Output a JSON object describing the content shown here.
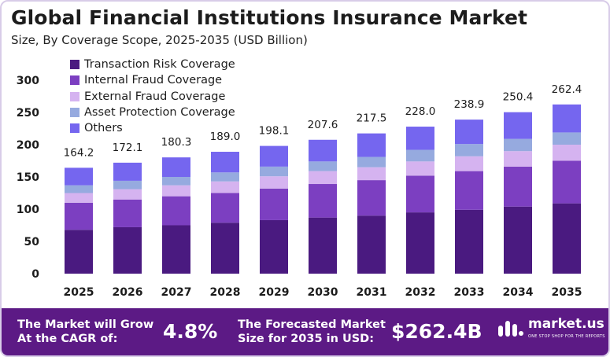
{
  "title": "Global Financial Institutions Insurance Market",
  "subtitle": "Size, By Coverage Scope, 2025-2035 (USD Billion)",
  "colors": {
    "transaction": "#4a1a80",
    "internal": "#7c3fc1",
    "external": "#d5b3f0",
    "asset": "#96aadf",
    "others": "#7566ef",
    "footer": "#5c1a85",
    "text": "#1c1c1c"
  },
  "chart_data": {
    "type": "bar",
    "stacked": true,
    "categories": [
      "2025",
      "2026",
      "2027",
      "2028",
      "2029",
      "2030",
      "2031",
      "2032",
      "2033",
      "2034",
      "2035"
    ],
    "series": [
      {
        "name": "Transaction Risk Coverage",
        "color": "#4a1a80",
        "values": [
          68,
          72,
          75,
          79,
          83,
          87,
          90,
          95,
          99,
          104,
          109
        ]
      },
      {
        "name": "Internal Fraud Coverage",
        "color": "#7c3fc1",
        "values": [
          42,
          43,
          45,
          46,
          49,
          52,
          55,
          57,
          60,
          62,
          66
        ]
      },
      {
        "name": "External Fraud Coverage",
        "color": "#d5b3f0",
        "values": [
          15,
          16,
          17,
          18,
          19,
          20,
          20,
          22,
          23,
          24,
          25
        ]
      },
      {
        "name": "Asset Protection Coverage",
        "color": "#96aadf",
        "values": [
          12,
          13,
          13,
          14,
          15,
          15,
          16,
          18,
          19,
          19,
          19
        ]
      },
      {
        "name": "Others",
        "color": "#7566ef",
        "values": [
          27.2,
          28.1,
          30.3,
          32,
          32.1,
          33.6,
          36.5,
          36,
          37.9,
          41.4,
          43.4
        ]
      }
    ],
    "totals": [
      "164.2",
      "172.1",
      "180.3",
      "189.0",
      "198.1",
      "207.6",
      "217.5",
      "228.0",
      "238.9",
      "250.4",
      "262.4"
    ],
    "yticks": [
      "0",
      "50",
      "100",
      "150",
      "200",
      "250",
      "300"
    ],
    "ylim": [
      0,
      300
    ],
    "legend_position": "top-left"
  },
  "footer": {
    "cagr_line1": "The Market will Grow",
    "cagr_line2": "At the CAGR of:",
    "cagr_value": "4.8%",
    "forecast_line1": "The Forecasted Market",
    "forecast_line2": "Size for 2035 in USD:",
    "forecast_value": "$262.4B",
    "brand": "market.us",
    "tagline": "ONE STOP SHOP FOR THE REPORTS"
  }
}
